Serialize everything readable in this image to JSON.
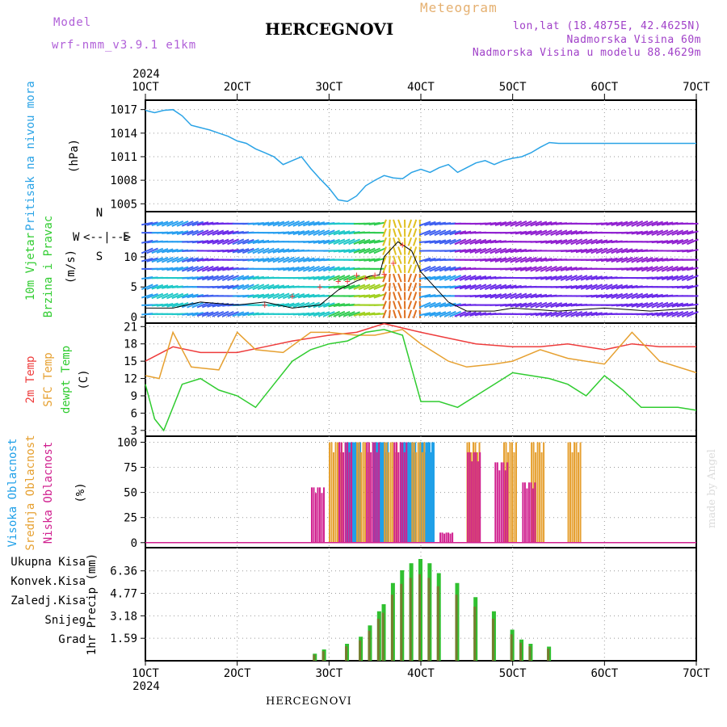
{
  "header": {
    "model_label": "Model",
    "model_name": "wrf-nmm_v3.9.1 e1km",
    "product": "Meteogram",
    "station": "HERCEGNOVI",
    "lonlat": "lon,lat (18.4875E, 42.4625N)",
    "elevation": "Nadmorska Visina 60m",
    "model_elevation": "Nadmorska Visina u modelu 88.4629m",
    "year": "2024"
  },
  "footer": {
    "station": "HERCEGNOVI",
    "credit": "made by Angel"
  },
  "colors": {
    "pressure": "#2aa3e6",
    "temp2m": "#ee3c3c",
    "sfc": "#e6a030",
    "dewpt": "#30cc30",
    "high": "#20a0e8",
    "mid": "#e6a030",
    "low": "#d0208f",
    "total": "#30c030",
    "konv": "#e85050",
    "zal": "#e68a3a",
    "snow": "#3c4cd8",
    "grad": "#28c8c8",
    "wind_label": "#30cc30",
    "dir_label": "#b05fd8"
  },
  "chart_data": [
    {
      "type": "line",
      "panel": "pressure",
      "xlabel_top": [
        "1OCT",
        "2OCT",
        "3OCT",
        "4OCT",
        "5OCT",
        "6OCT",
        "7OCT"
      ],
      "ylabel": [
        "Pritisak na nivou mora",
        "(hPa)"
      ],
      "y_ticks": [
        "1005",
        "1008",
        "1011",
        "1014",
        "1017"
      ],
      "ylim": [
        1004,
        1018.2
      ],
      "series": [
        {
          "x": [
            0,
            0.1,
            0.2,
            0.3,
            0.4,
            0.5,
            0.6,
            0.7,
            0.8,
            0.9,
            1.0,
            1.1,
            1.2,
            1.3,
            1.4,
            1.5,
            1.6,
            1.7,
            1.8,
            1.9,
            2.0,
            2.1,
            2.2,
            2.3,
            2.4,
            2.5,
            2.6,
            2.7,
            2.8,
            2.9,
            3.0,
            3.1,
            3.2,
            3.3,
            3.4,
            3.5,
            3.6,
            3.7,
            3.8,
            3.9,
            4.0,
            4.1,
            4.2,
            4.3,
            4.4,
            4.5,
            4.6,
            4.7,
            4.8,
            4.9,
            5.0,
            5.1,
            5.2,
            5.3,
            5.4,
            5.5,
            5.6,
            5.7,
            5.8,
            5.9,
            6.0
          ],
          "y": [
            1016.9,
            1016.6,
            1016.9,
            1017.0,
            1016.2,
            1015.0,
            1014.7,
            1014.4,
            1014.0,
            1013.6,
            1013.0,
            1012.7,
            1012.0,
            1011.5,
            1011.0,
            1010.0,
            1010.5,
            1011.0,
            1009.5,
            1008.2,
            1007.0,
            1005.5,
            1005.3,
            1006.0,
            1007.3,
            1008.0,
            1008.6,
            1008.3,
            1008.2,
            1009.0,
            1009.4,
            1009.0,
            1009.6,
            1010.0,
            1009.0,
            1009.6,
            1010.2,
            1010.5,
            1010.0,
            1010.5,
            1010.8,
            1011.0,
            1011.5,
            1012.2,
            1012.8,
            1012.7,
            1012.7,
            1012.7,
            1012.7,
            1012.7,
            1012.7,
            1012.7,
            1012.7,
            1012.7,
            1012.7,
            1012.7,
            1012.7,
            1012.7,
            1012.7,
            1012.7,
            1012.7
          ]
        }
      ]
    },
    {
      "type": "line",
      "panel": "wind",
      "ylabel": [
        "10m Vjetar",
        "Brzina i Pravac",
        "(m/s)"
      ],
      "dir_labels": [
        "N",
        "S",
        "W",
        "E",
        "<--|-->"
      ],
      "y_ticks": [
        "0",
        "5",
        "10"
      ],
      "ylim": [
        -1,
        17.5
      ],
      "series": [
        {
          "name": "speed",
          "x": [
            0,
            0.3,
            0.6,
            1.0,
            1.3,
            1.6,
            1.9,
            2.1,
            2.3,
            2.45,
            2.55,
            2.6,
            2.75,
            2.9,
            3.0,
            3.3,
            3.5,
            3.8,
            4.0,
            4.5,
            5.0,
            5.5,
            6.0
          ],
          "y": [
            1.5,
            1.5,
            2.5,
            2.0,
            2.5,
            1.5,
            2.0,
            4.5,
            6.0,
            6.8,
            7.0,
            10.0,
            12.5,
            11.0,
            7.5,
            2.5,
            1.0,
            1.0,
            1.5,
            1.0,
            1.5,
            1.0,
            1.5
          ]
        },
        {
          "name": "gust",
          "x": [
            1.3,
            1.6,
            1.9,
            2.1,
            2.2,
            2.3,
            2.4,
            2.5,
            2.6,
            2.7,
            2.8
          ],
          "y": [
            2.0,
            3.5,
            5.0,
            6.0,
            6.0,
            7.0,
            6.5,
            7.0,
            7.2,
            9.0,
            12.0
          ]
        }
      ]
    },
    {
      "type": "line",
      "panel": "temperature",
      "ylabel": [
        "2m Temp",
        "SFC Temp",
        "dewpt Temp",
        "(C)"
      ],
      "y_ticks": [
        "3",
        "6",
        "9",
        "12",
        "15",
        "18",
        "21"
      ],
      "ylim": [
        2,
        21.6
      ],
      "series": [
        {
          "name": "2m Temp",
          "x": [
            0,
            0.3,
            0.6,
            1.0,
            1.3,
            1.6,
            2.0,
            2.3,
            2.6,
            3.0,
            3.3,
            3.6,
            4.0,
            4.3,
            4.6,
            5.0,
            5.3,
            5.6,
            6.0
          ],
          "y": [
            15,
            17.5,
            16.5,
            16.5,
            17.5,
            18.5,
            19.5,
            20,
            21.5,
            20,
            19,
            18,
            17.5,
            17.5,
            18,
            17,
            18,
            17.5,
            17.5
          ]
        },
        {
          "name": "SFC Temp",
          "x": [
            0,
            0.15,
            0.3,
            0.5,
            0.8,
            1.0,
            1.2,
            1.5,
            1.8,
            2.0,
            2.3,
            2.5,
            2.8,
            3.0,
            3.3,
            3.5,
            3.8,
            4.0,
            4.3,
            4.6,
            5.0,
            5.3,
            5.6,
            6.0
          ],
          "y": [
            12.5,
            12,
            20,
            14,
            13.5,
            20,
            17,
            16.5,
            20,
            20,
            19.5,
            19.5,
            20.5,
            18,
            15,
            14,
            14.5,
            15,
            17,
            15.5,
            14.5,
            20,
            15,
            13
          ]
        },
        {
          "name": "dewpt Temp",
          "x": [
            0,
            0.1,
            0.2,
            0.4,
            0.6,
            0.8,
            1.0,
            1.2,
            1.4,
            1.6,
            1.8,
            2.0,
            2.2,
            2.4,
            2.6,
            2.8,
            3.0,
            3.2,
            3.4,
            3.6,
            3.8,
            4.0,
            4.2,
            4.4,
            4.6,
            4.8,
            5.0,
            5.2,
            5.4,
            5.6,
            5.8,
            6.0
          ],
          "y": [
            11,
            5,
            3,
            11,
            12,
            10,
            9,
            7,
            11,
            15,
            17,
            18,
            18.5,
            20,
            20.5,
            19.5,
            8,
            8,
            7,
            9,
            11,
            13,
            12.5,
            12,
            11,
            9,
            12.5,
            10,
            7,
            7,
            7,
            6.5
          ]
        }
      ]
    },
    {
      "type": "bar",
      "panel": "clouds",
      "ylabel": [
        "Visoka Oblacnost",
        "Srednja Oblacnost",
        "Niska Oblacnost",
        "(%)"
      ],
      "y_ticks": [
        "0",
        "25",
        "50",
        "75",
        "100"
      ],
      "ylim": [
        -5,
        106
      ],
      "series": [
        {
          "name": "Visoka Oblacnost",
          "x": [
            2.2,
            2.5,
            2.8,
            3.0
          ],
          "values": [
            100,
            100,
            100,
            100
          ]
        },
        {
          "name": "Srednja Oblacnost",
          "x": [
            2.0,
            2.3,
            2.6,
            2.9,
            3.5,
            3.9,
            4.2,
            4.6
          ],
          "values": [
            100,
            100,
            100,
            100,
            100,
            100,
            100,
            100
          ]
        },
        {
          "name": "Niska Oblacnost",
          "x": [
            1.8,
            2.1,
            2.4,
            2.7,
            3.2,
            3.5,
            3.8,
            4.1
          ],
          "values": [
            55,
            100,
            100,
            100,
            10,
            90,
            80,
            60
          ]
        }
      ]
    },
    {
      "type": "bar",
      "panel": "precip",
      "ylabel": [
        "1hr Precip (mm)"
      ],
      "legend": [
        "Ukupna Kisa",
        "Konvek.Kisa",
        "Zaledj.Kisa",
        "Snijeg",
        "Grad"
      ],
      "y_ticks": [
        "1.59",
        "3.18",
        "4.77",
        "6.36"
      ],
      "xlabel_bottom": [
        "1OCT",
        "2OCT",
        "3OCT",
        "4OCT",
        "5OCT",
        "6OCT",
        "7OCT"
      ],
      "ylim": [
        0,
        8
      ],
      "series": [
        {
          "name": "Ukupna Kisa",
          "x": [
            1.85,
            1.95,
            2.2,
            2.35,
            2.45,
            2.55,
            2.6,
            2.7,
            2.8,
            2.9,
            3.0,
            3.1,
            3.2,
            3.4,
            3.6,
            3.8,
            4.0,
            4.1,
            4.2,
            4.4
          ],
          "values": [
            0.5,
            0.8,
            1.2,
            1.7,
            2.5,
            3.5,
            4.0,
            5.5,
            6.4,
            6.9,
            7.2,
            6.9,
            6.2,
            5.5,
            4.5,
            3.5,
            2.2,
            1.5,
            1.2,
            1.0
          ]
        }
      ]
    }
  ]
}
